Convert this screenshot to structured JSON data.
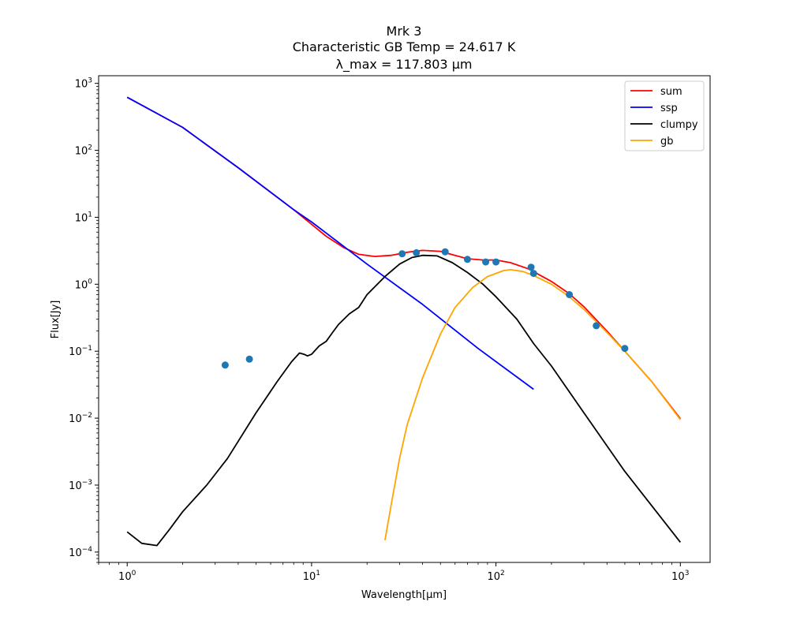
{
  "chart_data": {
    "type": "line",
    "title": [
      "Mrk 3",
      "Characteristic GB Temp = 24.617 K",
      "λ_max = 117.803 μm"
    ],
    "xlabel": "Wavelength[μm]",
    "ylabel": "Flux[Jy]",
    "xscale": "log",
    "yscale": "log",
    "xlim": [
      0.7,
      1450
    ],
    "ylim": [
      7e-05,
      1300
    ],
    "x_ticks": [
      {
        "value": 1,
        "base": "10",
        "exp": "0"
      },
      {
        "value": 10,
        "base": "10",
        "exp": "1"
      },
      {
        "value": 100,
        "base": "10",
        "exp": "2"
      },
      {
        "value": 1000,
        "base": "10",
        "exp": "3"
      }
    ],
    "y_ticks": [
      {
        "value": 0.0001,
        "base": "10",
        "exp": "−4"
      },
      {
        "value": 0.001,
        "base": "10",
        "exp": "−3"
      },
      {
        "value": 0.01,
        "base": "10",
        "exp": "−2"
      },
      {
        "value": 0.1,
        "base": "10",
        "exp": "−1"
      },
      {
        "value": 1,
        "base": "10",
        "exp": "0"
      },
      {
        "value": 10,
        "base": "10",
        "exp": "1"
      },
      {
        "value": 100,
        "base": "10",
        "exp": "2"
      },
      {
        "value": 1000,
        "base": "10",
        "exp": "3"
      }
    ],
    "grid": false,
    "legend_position": "top-right",
    "series": [
      {
        "name": "sum",
        "color": "#ff0000",
        "points": [
          [
            1,
            620
          ],
          [
            2,
            220
          ],
          [
            4,
            55
          ],
          [
            8,
            13
          ],
          [
            12,
            5.2
          ],
          [
            15,
            3.5
          ],
          [
            18,
            2.8
          ],
          [
            22,
            2.6
          ],
          [
            27,
            2.7
          ],
          [
            33,
            3.0
          ],
          [
            40,
            3.2
          ],
          [
            50,
            3.1
          ],
          [
            60,
            2.7
          ],
          [
            70,
            2.4
          ],
          [
            85,
            2.3
          ],
          [
            100,
            2.3
          ],
          [
            120,
            2.1
          ],
          [
            150,
            1.7
          ],
          [
            200,
            1.1
          ],
          [
            250,
            0.72
          ],
          [
            300,
            0.46
          ],
          [
            400,
            0.2
          ],
          [
            500,
            0.1
          ],
          [
            700,
            0.035
          ],
          [
            1000,
            0.0098
          ]
        ]
      },
      {
        "name": "ssp",
        "color": "#0000ff",
        "points": [
          [
            1,
            620
          ],
          [
            2,
            220
          ],
          [
            4,
            55
          ],
          [
            8,
            13
          ],
          [
            10,
            8.5
          ],
          [
            20,
            2.0
          ],
          [
            40,
            0.5
          ],
          [
            80,
            0.11
          ],
          [
            160,
            0.027
          ]
        ]
      },
      {
        "name": "clumpy",
        "color": "#000000",
        "points": [
          [
            1,
            0.0002
          ],
          [
            1.2,
            0.000135
          ],
          [
            1.45,
            0.000125
          ],
          [
            1.7,
            0.00022
          ],
          [
            2,
            0.0004
          ],
          [
            2.7,
            0.001
          ],
          [
            3.5,
            0.0025
          ],
          [
            5,
            0.012
          ],
          [
            6.5,
            0.035
          ],
          [
            7.8,
            0.07
          ],
          [
            8.6,
            0.094
          ],
          [
            9.1,
            0.09
          ],
          [
            9.5,
            0.085
          ],
          [
            10,
            0.09
          ],
          [
            11,
            0.12
          ],
          [
            12,
            0.14
          ],
          [
            13,
            0.19
          ],
          [
            14,
            0.25
          ],
          [
            16,
            0.36
          ],
          [
            18,
            0.45
          ],
          [
            20,
            0.7
          ],
          [
            25,
            1.3
          ],
          [
            30,
            2.0
          ],
          [
            35,
            2.5
          ],
          [
            40,
            2.7
          ],
          [
            48,
            2.65
          ],
          [
            58,
            2.1
          ],
          [
            70,
            1.5
          ],
          [
            85,
            1.0
          ],
          [
            100,
            0.65
          ],
          [
            130,
            0.3
          ],
          [
            160,
            0.13
          ],
          [
            200,
            0.06
          ],
          [
            300,
            0.012
          ],
          [
            500,
            0.0016
          ],
          [
            1000,
            0.00014
          ]
        ]
      },
      {
        "name": "gb",
        "color": "#ffa500",
        "points": [
          [
            25,
            0.00015
          ],
          [
            27,
            0.0005
          ],
          [
            30,
            0.0025
          ],
          [
            33,
            0.008
          ],
          [
            40,
            0.04
          ],
          [
            50,
            0.18
          ],
          [
            60,
            0.45
          ],
          [
            75,
            0.9
          ],
          [
            90,
            1.3
          ],
          [
            110,
            1.6
          ],
          [
            120,
            1.65
          ],
          [
            140,
            1.55
          ],
          [
            160,
            1.35
          ],
          [
            200,
            1.0
          ],
          [
            250,
            0.65
          ],
          [
            300,
            0.42
          ],
          [
            400,
            0.19
          ],
          [
            500,
            0.1
          ],
          [
            700,
            0.035
          ],
          [
            1000,
            0.0095
          ]
        ]
      }
    ],
    "observations": {
      "color": "#1f77b4",
      "points": [
        [
          3.4,
          0.062
        ],
        [
          4.6,
          0.076
        ],
        [
          31,
          2.85
        ],
        [
          37,
          2.95
        ],
        [
          53,
          3.05
        ],
        [
          70,
          2.35
        ],
        [
          88,
          2.15
        ],
        [
          100,
          2.15
        ],
        [
          155,
          1.8
        ],
        [
          160,
          1.45
        ],
        [
          250,
          0.7
        ],
        [
          350,
          0.24
        ],
        [
          500,
          0.11
        ]
      ]
    }
  }
}
